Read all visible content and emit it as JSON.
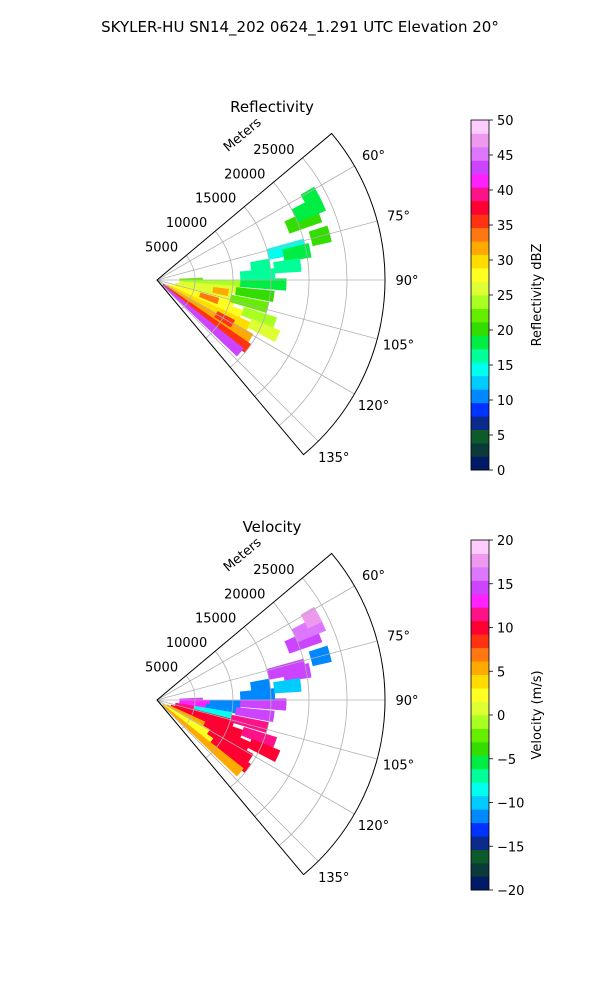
{
  "figure": {
    "suptitle": "SKYLER-HU  SN14_202  0624_1.291 UTC Elevation 20°"
  },
  "chart_data": [
    {
      "type": "heatmap",
      "subtype": "polar-ppi-sector",
      "title": "Reflectivity",
      "range_label": "Meters",
      "range_ticks": [
        "5000",
        "10000",
        "15000",
        "20000",
        "25000"
      ],
      "range_values": [
        5000,
        10000,
        15000,
        20000,
        25000
      ],
      "range_max": 30000,
      "azimuth_range_deg": [
        50,
        140
      ],
      "azimuth_ticks": [
        "60°",
        "75°",
        "90°",
        "105°",
        "120°",
        "135°"
      ],
      "azimuth_values": [
        60,
        75,
        90,
        105,
        120,
        135
      ],
      "colorbar": {
        "label": "Reflectivity dBZ",
        "range": [
          0,
          50
        ],
        "ticks": [
          "0",
          "5",
          "10",
          "15",
          "20",
          "25",
          "30",
          "35",
          "40",
          "45",
          "50"
        ],
        "tick_values": [
          0,
          5,
          10,
          15,
          20,
          25,
          30,
          35,
          40,
          45,
          50
        ],
        "colors": [
          "#001a66",
          "#0a3a3a",
          "#0d5a2a",
          "#0a2a8c",
          "#0033ff",
          "#0088ff",
          "#00ccff",
          "#00ffee",
          "#00ff99",
          "#00ee44",
          "#33dd00",
          "#66ee00",
          "#aaff22",
          "#ddff33",
          "#ffff22",
          "#ffdd00",
          "#ffaa00",
          "#ff7711",
          "#ff3311",
          "#ff0033",
          "#ff1188",
          "#ff22ff",
          "#cc44ff",
          "#dd77ff",
          "#ee99ee",
          "#ffccff"
        ]
      },
      "cells": [
        {
          "az": 90,
          "r0": 3000,
          "r1": 6000,
          "dbz": 22
        },
        {
          "az": 93,
          "r0": 3000,
          "r1": 11000,
          "dbz": 24
        },
        {
          "az": 97,
          "r0": 3000,
          "r1": 10500,
          "dbz": 26
        },
        {
          "az": 102,
          "r0": 2500,
          "r1": 10000,
          "dbz": 25
        },
        {
          "az": 107,
          "r0": 2500,
          "r1": 10500,
          "dbz": 27
        },
        {
          "az": 112,
          "r0": 2000,
          "r1": 12000,
          "dbz": 28
        },
        {
          "az": 117,
          "r0": 1500,
          "r1": 13500,
          "dbz": 29
        },
        {
          "az": 122,
          "r0": 1500,
          "r1": 14500,
          "dbz": 31
        },
        {
          "az": 127,
          "r0": 1000,
          "r1": 15000,
          "dbz": 36
        },
        {
          "az": 131,
          "r0": 1000,
          "r1": 14500,
          "dbz": 43
        },
        {
          "az": 92,
          "r0": 11000,
          "r1": 17000,
          "dbz": 18
        },
        {
          "az": 98,
          "r0": 10500,
          "r1": 15500,
          "dbz": 21
        },
        {
          "az": 104,
          "r0": 10000,
          "r1": 15000,
          "dbz": 23
        },
        {
          "az": 110,
          "r0": 12000,
          "r1": 16500,
          "dbz": 24
        },
        {
          "az": 115,
          "r0": 13500,
          "r1": 17500,
          "dbz": 26
        },
        {
          "az": 87,
          "r0": 11000,
          "r1": 15500,
          "dbz": 17
        },
        {
          "az": 82,
          "r0": 12500,
          "r1": 15000,
          "dbz": 16
        },
        {
          "az": 77,
          "r0": 15000,
          "r1": 20000,
          "dbz": 15
        },
        {
          "az": 75,
          "r0": 21000,
          "r1": 23500,
          "dbz": 20
        },
        {
          "az": 79,
          "r0": 17000,
          "r1": 20500,
          "dbz": 18
        },
        {
          "az": 84,
          "r0": 15500,
          "r1": 19000,
          "dbz": 17
        },
        {
          "az": 68,
          "r0": 18500,
          "r1": 23000,
          "dbz": 21
        },
        {
          "az": 65,
          "r0": 20000,
          "r1": 24000,
          "dbz": 19
        },
        {
          "az": 62,
          "r0": 22000,
          "r1": 24000,
          "dbz": 18
        },
        {
          "az": 120,
          "r0": 9000,
          "r1": 11500,
          "dbz": 35
        },
        {
          "az": 109,
          "r0": 6000,
          "r1": 8500,
          "dbz": 33
        },
        {
          "az": 100,
          "r0": 7500,
          "r1": 9500,
          "dbz": 31
        }
      ]
    },
    {
      "type": "heatmap",
      "subtype": "polar-ppi-sector",
      "title": "Velocity",
      "range_label": "Meters",
      "range_ticks": [
        "5000",
        "10000",
        "15000",
        "20000",
        "25000"
      ],
      "range_values": [
        5000,
        10000,
        15000,
        20000,
        25000
      ],
      "range_max": 30000,
      "azimuth_range_deg": [
        50,
        140
      ],
      "azimuth_ticks": [
        "60°",
        "75°",
        "90°",
        "105°",
        "120°",
        "135°"
      ],
      "azimuth_values": [
        60,
        75,
        90,
        105,
        120,
        135
      ],
      "colorbar": {
        "label": "Velocity (m/s)",
        "range": [
          -20,
          20
        ],
        "ticks": [
          "−20",
          "−15",
          "−10",
          "−5",
          "0",
          "5",
          "10",
          "15",
          "20"
        ],
        "tick_values": [
          -20,
          -15,
          -10,
          -5,
          0,
          5,
          10,
          15,
          20
        ],
        "colors": [
          "#001a66",
          "#0a3a3a",
          "#0d5a2a",
          "#0a2a8c",
          "#0033ff",
          "#0088ff",
          "#00ccff",
          "#00ffee",
          "#00ff99",
          "#00ee44",
          "#33dd00",
          "#66ee00",
          "#aaff22",
          "#ddff33",
          "#ffff22",
          "#ffdd00",
          "#ffaa00",
          "#ff7711",
          "#ff3311",
          "#ff0033",
          "#ff1188",
          "#ff22ff",
          "#cc44ff",
          "#dd77ff",
          "#ee99ee",
          "#ffccff"
        ]
      },
      "cells": [
        {
          "az": 90,
          "r0": 3000,
          "r1": 6000,
          "vel": 14
        },
        {
          "az": 93,
          "r0": 3000,
          "r1": 7000,
          "vel": 13
        },
        {
          "az": 93,
          "r0": 7000,
          "r1": 11000,
          "vel": -12
        },
        {
          "az": 97,
          "r0": 3000,
          "r1": 6500,
          "vel": 13
        },
        {
          "az": 97,
          "r0": 6500,
          "r1": 10500,
          "vel": -11
        },
        {
          "az": 102,
          "r0": 2500,
          "r1": 5000,
          "vel": 11
        },
        {
          "az": 102,
          "r0": 5000,
          "r1": 10000,
          "vel": -9
        },
        {
          "az": 107,
          "r0": 2500,
          "r1": 10500,
          "vel": 10
        },
        {
          "az": 112,
          "r0": 2000,
          "r1": 12000,
          "vel": 10
        },
        {
          "az": 117,
          "r0": 1500,
          "r1": 7000,
          "vel": 5
        },
        {
          "az": 117,
          "r0": 7000,
          "r1": 13500,
          "vel": 10
        },
        {
          "az": 122,
          "r0": 1500,
          "r1": 8000,
          "vel": 3
        },
        {
          "az": 122,
          "r0": 8000,
          "r1": 14500,
          "vel": 10
        },
        {
          "az": 127,
          "r0": 1000,
          "r1": 9000,
          "vel": 2
        },
        {
          "az": 127,
          "r0": 9000,
          "r1": 15000,
          "vel": 10
        },
        {
          "az": 131,
          "r0": 1000,
          "r1": 14500,
          "vel": 6
        },
        {
          "az": 92,
          "r0": 11000,
          "r1": 17000,
          "vel": 14
        },
        {
          "az": 98,
          "r0": 10500,
          "r1": 15500,
          "vel": 15
        },
        {
          "az": 104,
          "r0": 10000,
          "r1": 15000,
          "vel": 12
        },
        {
          "az": 110,
          "r0": 12000,
          "r1": 16500,
          "vel": 11
        },
        {
          "az": 115,
          "r0": 13500,
          "r1": 17500,
          "vel": 10
        },
        {
          "az": 87,
          "r0": 11000,
          "r1": 15500,
          "vel": -11
        },
        {
          "az": 82,
          "r0": 12500,
          "r1": 15000,
          "vel": -12
        },
        {
          "az": 77,
          "r0": 15000,
          "r1": 20000,
          "vel": 15
        },
        {
          "az": 75,
          "r0": 21000,
          "r1": 23500,
          "vel": -11
        },
        {
          "az": 79,
          "r0": 17000,
          "r1": 20500,
          "vel": 14
        },
        {
          "az": 84,
          "r0": 15500,
          "r1": 19000,
          "vel": -10
        },
        {
          "az": 68,
          "r0": 18500,
          "r1": 23000,
          "vel": 15
        },
        {
          "az": 65,
          "r0": 20000,
          "r1": 24000,
          "vel": 16
        },
        {
          "az": 62,
          "r0": 22000,
          "r1": 24000,
          "vel": 17
        }
      ]
    }
  ]
}
